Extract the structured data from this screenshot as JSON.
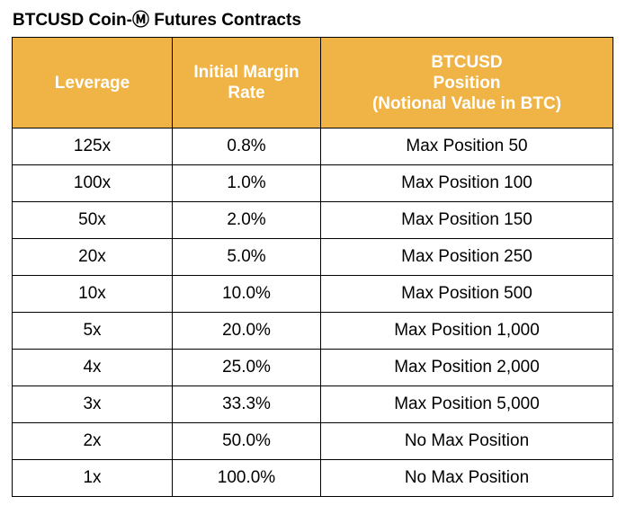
{
  "title": "BTCUSD Coin-Ⓜ Futures Contracts",
  "header_color": "#f0b345",
  "columns": {
    "leverage": "Leverage",
    "margin": [
      "Initial Margin",
      "Rate"
    ],
    "position": [
      "BTCUSD",
      "Position",
      "(Notional Value in BTC)"
    ]
  },
  "rows": [
    {
      "leverage": "125x",
      "margin": "0.8%",
      "position": "Max Position 50"
    },
    {
      "leverage": "100x",
      "margin": "1.0%",
      "position": "Max Position 100"
    },
    {
      "leverage": "50x",
      "margin": "2.0%",
      "position": "Max Position 150"
    },
    {
      "leverage": "20x",
      "margin": "5.0%",
      "position": "Max Position 250"
    },
    {
      "leverage": "10x",
      "margin": "10.0%",
      "position": "Max Position 500"
    },
    {
      "leverage": "5x",
      "margin": "20.0%",
      "position": "Max Position 1,000"
    },
    {
      "leverage": "4x",
      "margin": "25.0%",
      "position": "Max Position 2,000"
    },
    {
      "leverage": "3x",
      "margin": "33.3%",
      "position": "Max Position 5,000"
    },
    {
      "leverage": "2x",
      "margin": "50.0%",
      "position": "No Max Position"
    },
    {
      "leverage": "1x",
      "margin": "100.0%",
      "position": "No Max Position"
    }
  ]
}
